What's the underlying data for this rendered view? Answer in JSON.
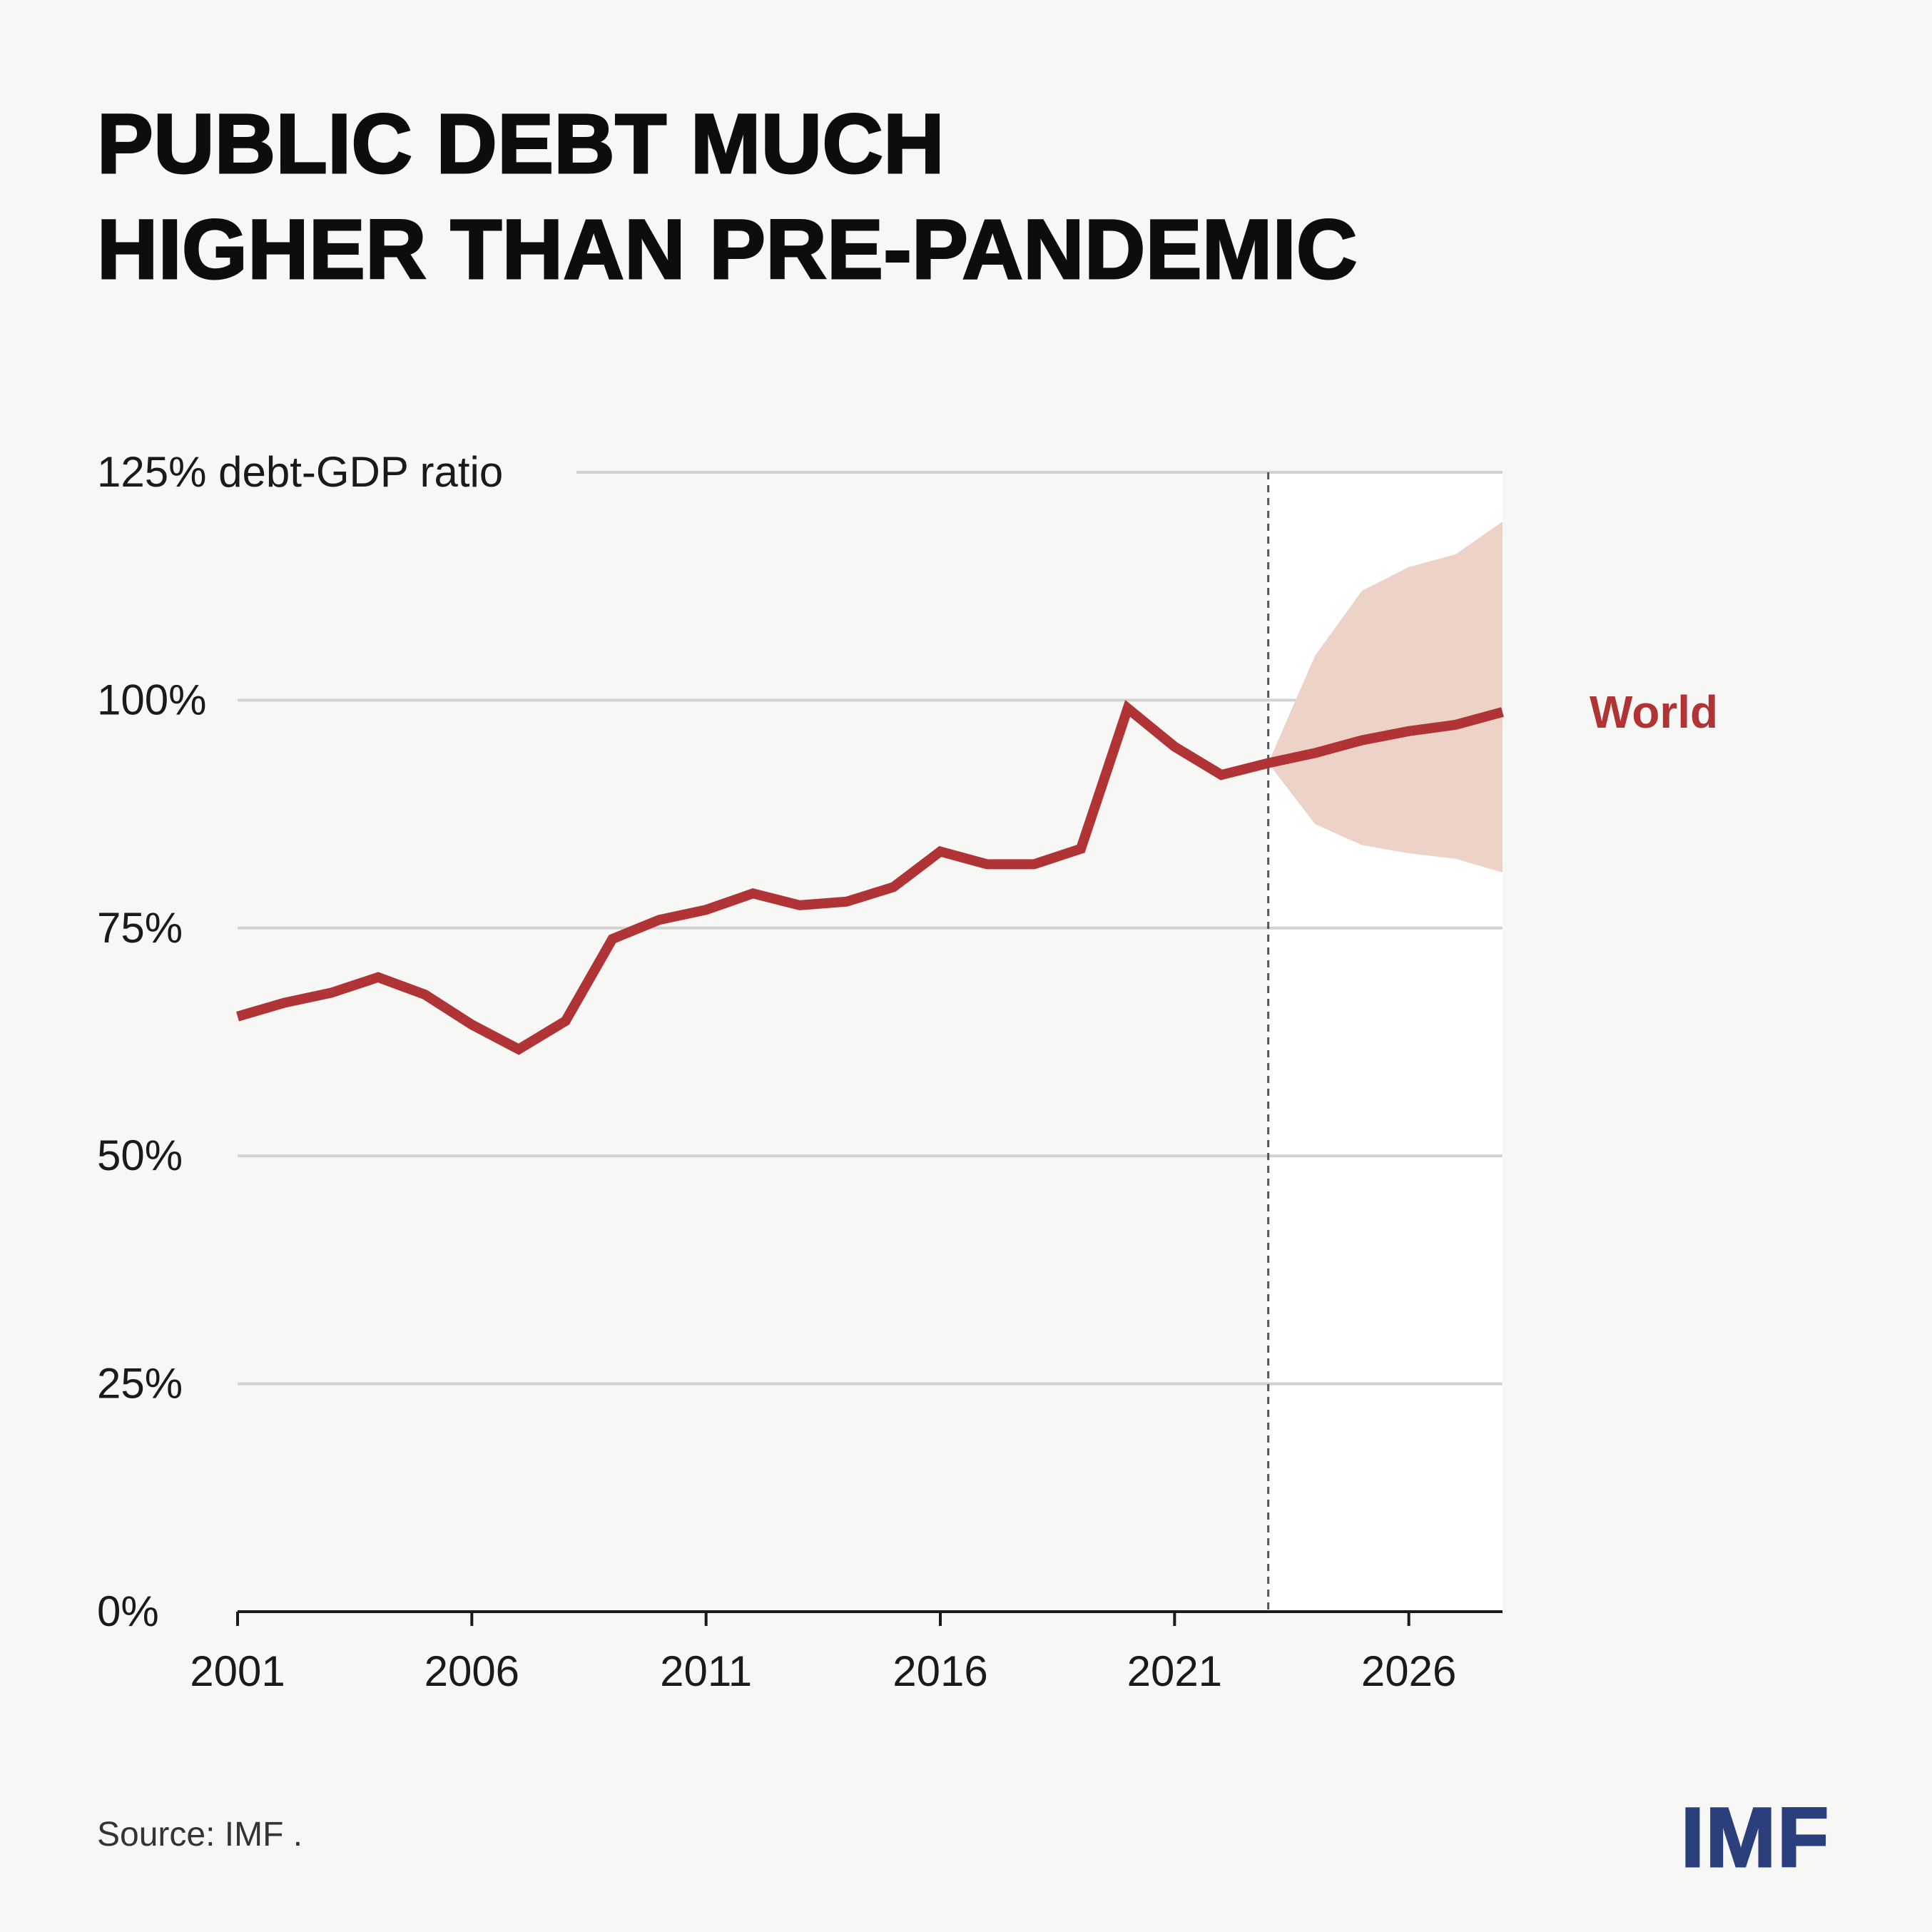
{
  "title_lines": [
    "PUBLIC DEBT MUCH",
    "HIGHER THAN PRE-PANDEMIC"
  ],
  "source": "Source: IMF .",
  "logo": "IMF",
  "colors": {
    "line": "#b03436",
    "band": "#ecd2c7",
    "forecast_bg": "#ffffff",
    "grid": "#d2d2d0",
    "label": "#b03436"
  },
  "chart_data": {
    "type": "line",
    "title": "PUBLIC DEBT MUCH HIGHER THAN PRE-PANDEMIC",
    "ylabel": "debt-GDP ratio",
    "y_ticks": [
      {
        "value": 125,
        "label": "125% debt-GDP ratio"
      },
      {
        "value": 100,
        "label": "100%"
      },
      {
        "value": 75,
        "label": "75%"
      },
      {
        "value": 50,
        "label": "50%"
      },
      {
        "value": 25,
        "label": "25%"
      },
      {
        "value": 0,
        "label": "0%"
      }
    ],
    "x_ticks": [
      "2001",
      "2006",
      "2011",
      "2016",
      "2021",
      "2026"
    ],
    "xlim": [
      2001,
      2028
    ],
    "ylim": [
      0,
      125
    ],
    "forecast_start": 2023,
    "series": [
      {
        "name": "World",
        "x": [
          2001,
          2002,
          2003,
          2004,
          2005,
          2006,
          2007,
          2008,
          2009,
          2010,
          2011,
          2012,
          2013,
          2014,
          2015,
          2016,
          2017,
          2018,
          2019,
          2020,
          2021,
          2022,
          2023,
          2024,
          2025,
          2026,
          2027,
          2028
        ],
        "values": [
          65.3,
          66.8,
          67.9,
          69.6,
          67.7,
          64.4,
          61.7,
          64.8,
          73.8,
          75.9,
          77.0,
          78.8,
          77.5,
          77.9,
          79.5,
          83.4,
          82.0,
          82.0,
          83.7,
          99.1,
          94.9,
          91.8,
          93.1,
          94.2,
          95.6,
          96.6,
          97.3,
          98.7
        ]
      }
    ],
    "uncertainty_band": {
      "x": [
        2023,
        2024,
        2025,
        2026,
        2027,
        2028
      ],
      "upper": [
        93.1,
        104.9,
        112.0,
        114.6,
        116.0,
        119.6
      ],
      "lower": [
        93.1,
        86.4,
        84.1,
        83.2,
        82.6,
        81.1
      ]
    },
    "series_label": "World"
  }
}
